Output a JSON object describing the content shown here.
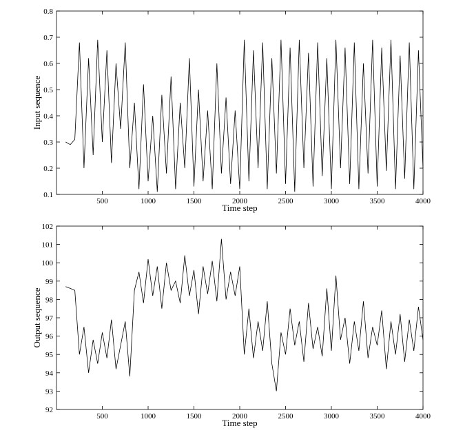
{
  "chart_data": [
    {
      "type": "line",
      "x_label": "Time step",
      "y_label": "Input sequence",
      "color": "#000000",
      "x": [
        100,
        150,
        200,
        250,
        300,
        350,
        400,
        450,
        500,
        550,
        600,
        650,
        700,
        750,
        800,
        850,
        900,
        950,
        1000,
        1050,
        1100,
        1150,
        1200,
        1250,
        1300,
        1350,
        1400,
        1450,
        1500,
        1550,
        1600,
        1650,
        1700,
        1750,
        1800,
        1850,
        1900,
        1950,
        2000,
        2050,
        2100,
        2150,
        2200,
        2250,
        2300,
        2350,
        2400,
        2450,
        2500,
        2550,
        2600,
        2650,
        2700,
        2750,
        2800,
        2850,
        2900,
        2950,
        3000,
        3050,
        3100,
        3150,
        3200,
        3250,
        3300,
        3350,
        3400,
        3450,
        3500,
        3550,
        3600,
        3650,
        3700,
        3750,
        3800,
        3850,
        3900,
        3950,
        4000
      ],
      "values": [
        0.3,
        0.29,
        0.31,
        0.68,
        0.2,
        0.62,
        0.25,
        0.69,
        0.3,
        0.65,
        0.22,
        0.6,
        0.35,
        0.68,
        0.2,
        0.45,
        0.12,
        0.52,
        0.15,
        0.4,
        0.11,
        0.48,
        0.18,
        0.55,
        0.12,
        0.45,
        0.2,
        0.62,
        0.13,
        0.5,
        0.15,
        0.42,
        0.12,
        0.6,
        0.18,
        0.47,
        0.14,
        0.42,
        0.12,
        0.69,
        0.15,
        0.65,
        0.2,
        0.68,
        0.12,
        0.62,
        0.18,
        0.69,
        0.14,
        0.66,
        0.11,
        0.69,
        0.2,
        0.64,
        0.13,
        0.68,
        0.17,
        0.62,
        0.12,
        0.69,
        0.2,
        0.66,
        0.14,
        0.68,
        0.12,
        0.6,
        0.18,
        0.69,
        0.13,
        0.66,
        0.19,
        0.69,
        0.12,
        0.63,
        0.16,
        0.68,
        0.12,
        0.65,
        0.2
      ],
      "xlim": [
        0,
        4000
      ],
      "xticks": [
        500,
        1000,
        1500,
        2000,
        2500,
        3000,
        3500,
        4000
      ],
      "ylim": [
        0.1,
        0.8
      ],
      "yticks": [
        0.1,
        0.2,
        0.3,
        0.4,
        0.5,
        0.6,
        0.7,
        0.8
      ]
    },
    {
      "type": "line",
      "x_label": "Time step",
      "y_label": "Output sequence",
      "color": "#000000",
      "x": [
        100,
        150,
        200,
        250,
        300,
        350,
        400,
        450,
        500,
        550,
        600,
        650,
        700,
        750,
        800,
        850,
        900,
        950,
        1000,
        1050,
        1100,
        1150,
        1200,
        1250,
        1300,
        1350,
        1400,
        1450,
        1500,
        1550,
        1600,
        1650,
        1700,
        1750,
        1800,
        1850,
        1900,
        1950,
        2000,
        2050,
        2100,
        2150,
        2200,
        2250,
        2300,
        2350,
        2400,
        2450,
        2500,
        2550,
        2600,
        2650,
        2700,
        2750,
        2800,
        2850,
        2900,
        2950,
        3000,
        3050,
        3100,
        3150,
        3200,
        3250,
        3300,
        3350,
        3400,
        3450,
        3500,
        3550,
        3600,
        3650,
        3700,
        3750,
        3800,
        3850,
        3900,
        3950,
        4000
      ],
      "values": [
        98.7,
        98.6,
        98.5,
        95.0,
        96.5,
        94.0,
        95.8,
        94.5,
        96.2,
        94.8,
        96.9,
        94.2,
        95.5,
        96.8,
        93.8,
        98.5,
        99.5,
        97.8,
        100.2,
        98.2,
        99.8,
        97.5,
        100.0,
        98.5,
        99.0,
        97.8,
        100.4,
        98.2,
        99.6,
        97.2,
        99.8,
        98.3,
        100.1,
        97.9,
        101.3,
        98.0,
        99.5,
        98.2,
        99.8,
        95.0,
        97.5,
        94.8,
        96.8,
        95.2,
        97.9,
        94.5,
        93.0,
        96.2,
        95.0,
        97.5,
        95.5,
        96.8,
        94.6,
        97.8,
        95.3,
        96.5,
        94.9,
        98.6,
        95.2,
        99.3,
        95.8,
        97.0,
        94.5,
        96.8,
        95.2,
        97.9,
        94.8,
        96.5,
        95.5,
        97.4,
        94.2,
        96.8,
        95.0,
        97.2,
        94.6,
        96.9,
        95.2,
        97.6,
        95.8
      ],
      "xlim": [
        0,
        4000
      ],
      "xticks": [
        500,
        1000,
        1500,
        2000,
        2500,
        3000,
        3500,
        4000
      ],
      "ylim": [
        92,
        102
      ],
      "yticks": [
        92,
        93,
        94,
        95,
        96,
        97,
        98,
        99,
        100,
        101,
        102
      ]
    }
  ]
}
